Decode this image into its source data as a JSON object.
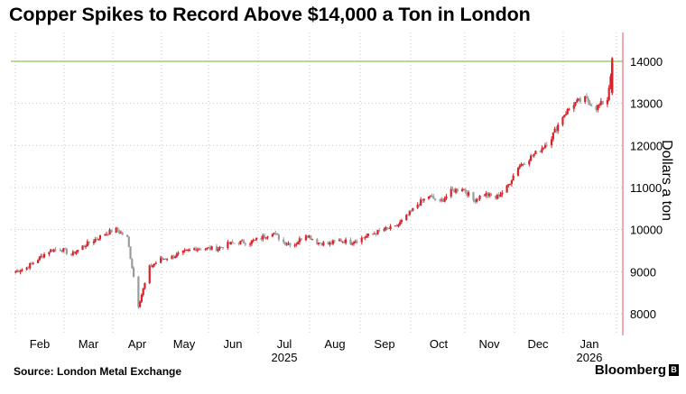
{
  "title": "Copper Spikes to Record Above $14,000 a Ton in London",
  "source": "Source: London Metal Exchange",
  "brand": "Bloomberg",
  "brand_mark": "B",
  "colors": {
    "up": "#d8222a",
    "down": "#9b9b9b",
    "highlight": "#8fc456",
    "grid": "#c8c8c8",
    "axis": "#e0555a"
  },
  "chart_data": {
    "type": "candlestick",
    "title": "Copper Spikes to Record Above $14,000 a Ton in London",
    "ylabel": "Dollars a ton",
    "ylim": [
      7500,
      14700
    ],
    "y_ticks": [
      8000,
      9000,
      10000,
      11000,
      12000,
      13000,
      14000
    ],
    "x_ticks": [
      {
        "label": "Feb",
        "sub": ""
      },
      {
        "label": "Mar",
        "sub": ""
      },
      {
        "label": "Apr",
        "sub": ""
      },
      {
        "label": "May",
        "sub": ""
      },
      {
        "label": "Jun",
        "sub": ""
      },
      {
        "label": "Jul",
        "sub": "2025"
      },
      {
        "label": "Aug",
        "sub": ""
      },
      {
        "label": "Sep",
        "sub": ""
      },
      {
        "label": "Oct",
        "sub": ""
      },
      {
        "label": "Nov",
        "sub": ""
      },
      {
        "label": "Dec",
        "sub": ""
      },
      {
        "label": "Jan",
        "sub": "2026"
      }
    ],
    "reference_line": 14000,
    "grid": true,
    "series": [
      {
        "x": "2025-01-20",
        "y": 9000
      },
      {
        "x": "2025-01-27",
        "y": 9100
      },
      {
        "x": "2025-02-03",
        "y": 9300
      },
      {
        "x": "2025-02-10",
        "y": 9500
      },
      {
        "x": "2025-02-17",
        "y": 9550
      },
      {
        "x": "2025-02-24",
        "y": 9400
      },
      {
        "x": "2025-03-03",
        "y": 9600
      },
      {
        "x": "2025-03-10",
        "y": 9750
      },
      {
        "x": "2025-03-17",
        "y": 9900
      },
      {
        "x": "2025-03-24",
        "y": 10000
      },
      {
        "x": "2025-03-31",
        "y": 9800
      },
      {
        "x": "2025-04-07",
        "y": 8200
      },
      {
        "x": "2025-04-14",
        "y": 9100
      },
      {
        "x": "2025-04-21",
        "y": 9300
      },
      {
        "x": "2025-04-28",
        "y": 9350
      },
      {
        "x": "2025-05-05",
        "y": 9450
      },
      {
        "x": "2025-05-12",
        "y": 9550
      },
      {
        "x": "2025-05-19",
        "y": 9550
      },
      {
        "x": "2025-05-26",
        "y": 9550
      },
      {
        "x": "2025-06-02",
        "y": 9650
      },
      {
        "x": "2025-06-09",
        "y": 9700
      },
      {
        "x": "2025-06-16",
        "y": 9700
      },
      {
        "x": "2025-06-23",
        "y": 9800
      },
      {
        "x": "2025-06-30",
        "y": 9950
      },
      {
        "x": "2025-07-07",
        "y": 9700
      },
      {
        "x": "2025-07-14",
        "y": 9650
      },
      {
        "x": "2025-07-21",
        "y": 9900
      },
      {
        "x": "2025-07-28",
        "y": 9700
      },
      {
        "x": "2025-08-04",
        "y": 9650
      },
      {
        "x": "2025-08-11",
        "y": 9750
      },
      {
        "x": "2025-08-18",
        "y": 9700
      },
      {
        "x": "2025-08-25",
        "y": 9800
      },
      {
        "x": "2025-09-01",
        "y": 9900
      },
      {
        "x": "2025-09-08",
        "y": 10000
      },
      {
        "x": "2025-09-15",
        "y": 10050
      },
      {
        "x": "2025-09-22",
        "y": 10300
      },
      {
        "x": "2025-09-29",
        "y": 10600
      },
      {
        "x": "2025-10-06",
        "y": 10800
      },
      {
        "x": "2025-10-13",
        "y": 10650
      },
      {
        "x": "2025-10-20",
        "y": 10900
      },
      {
        "x": "2025-10-27",
        "y": 11000
      },
      {
        "x": "2025-11-03",
        "y": 10700
      },
      {
        "x": "2025-11-10",
        "y": 10850
      },
      {
        "x": "2025-11-17",
        "y": 10750
      },
      {
        "x": "2025-11-24",
        "y": 11000
      },
      {
        "x": "2025-12-01",
        "y": 11500
      },
      {
        "x": "2025-12-08",
        "y": 11700
      },
      {
        "x": "2025-12-15",
        "y": 11900
      },
      {
        "x": "2025-12-22",
        "y": 12200
      },
      {
        "x": "2025-12-29",
        "y": 12700
      },
      {
        "x": "2026-01-05",
        "y": 13000
      },
      {
        "x": "2026-01-12",
        "y": 13100
      },
      {
        "x": "2026-01-19",
        "y": 12900
      },
      {
        "x": "2026-01-26",
        "y": 13100
      },
      {
        "x": "2026-01-29",
        "y": 14000
      }
    ]
  }
}
